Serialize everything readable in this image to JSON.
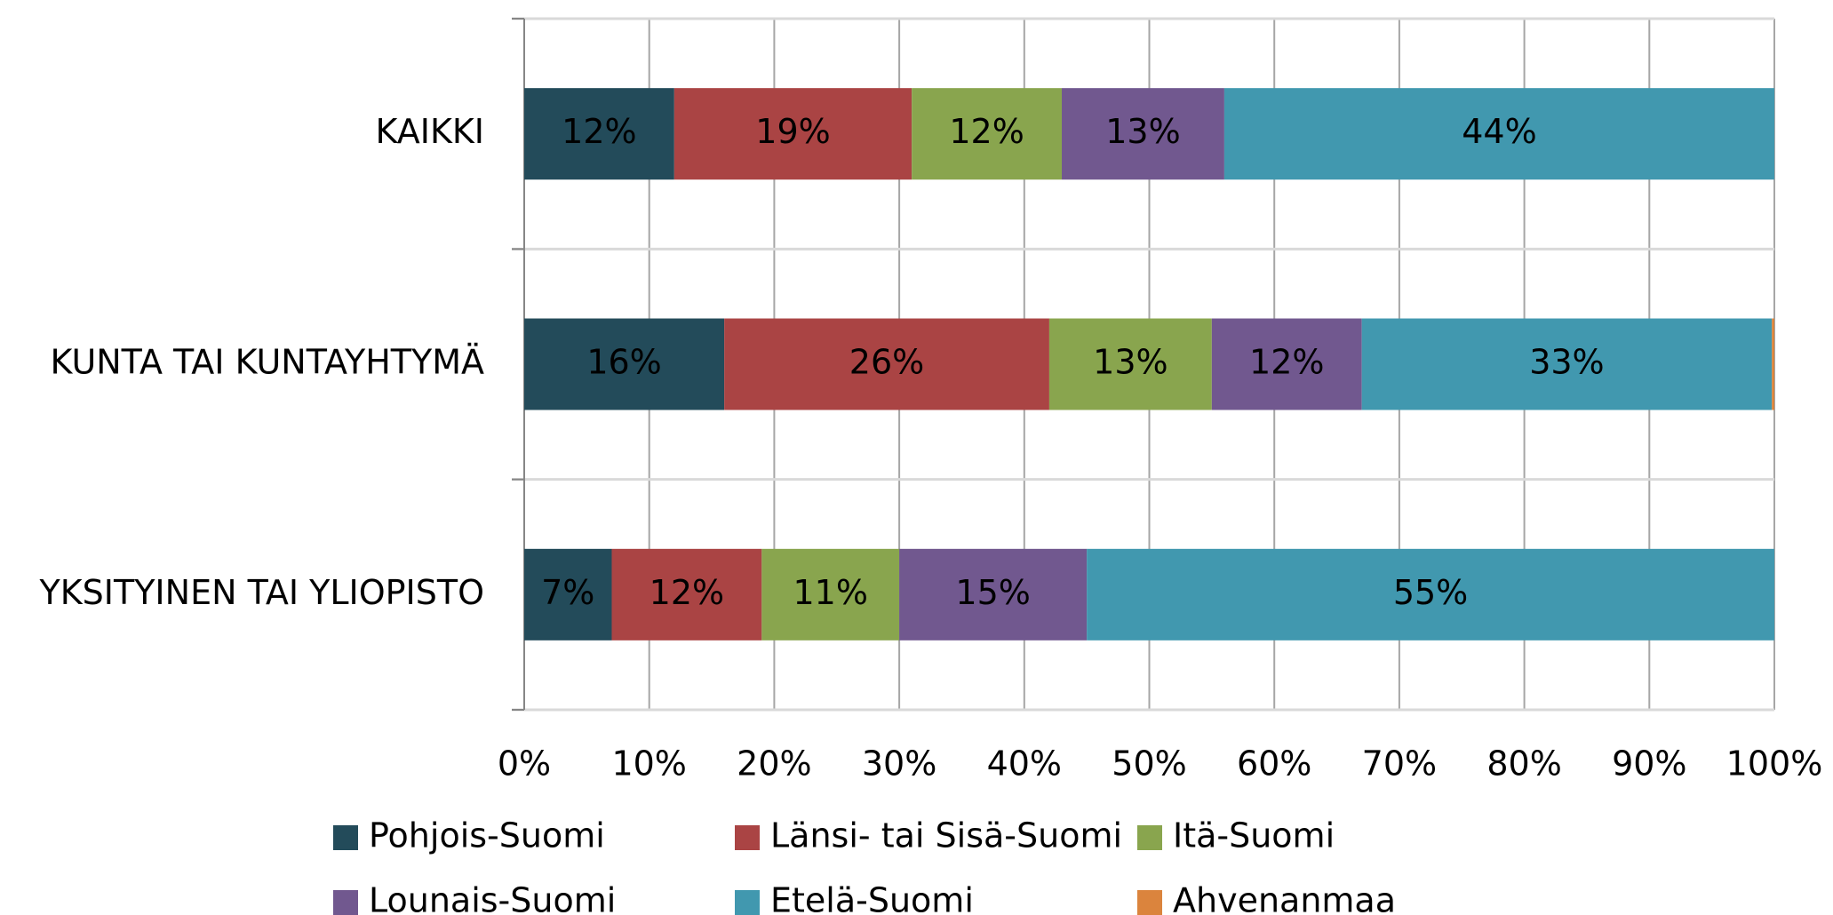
{
  "chart_data": {
    "type": "stacked_bar_horizontal",
    "categories": [
      "KAIKKI",
      "KUNTA TAI KUNTAYHTYMÄ",
      "YKSITYINEN TAI YLIOPISTO"
    ],
    "series": [
      {
        "name": "Pohjois-Suomi",
        "color": "#234b5a",
        "label_color": "#ffffff",
        "values": [
          12,
          16,
          7
        ],
        "value_labels": [
          "12%",
          "16%",
          "7%"
        ]
      },
      {
        "name": "Länsi- tai Sisä-Suomi",
        "color": "#aa4444",
        "label_color": "#ffffff",
        "values": [
          19,
          26,
          12
        ],
        "value_labels": [
          "19%",
          "26%",
          "12%"
        ]
      },
      {
        "name": "Itä-Suomi",
        "color": "#89a54e",
        "label_color": "#000000",
        "values": [
          12,
          13,
          11
        ],
        "value_labels": [
          "12%",
          "13%",
          "11%"
        ]
      },
      {
        "name": "Lounais-Suomi",
        "color": "#71588f",
        "label_color": "#ffffff",
        "values": [
          13,
          12,
          15
        ],
        "value_labels": [
          "13%",
          "12%",
          "15%"
        ]
      },
      {
        "name": "Etelä-Suomi",
        "color": "#4198af",
        "label_color": "#000000",
        "values": [
          44,
          32.8,
          55
        ],
        "value_labels": [
          "44%",
          "33%",
          "55%"
        ]
      },
      {
        "name": "Ahvenanmaa",
        "color": "#db843d",
        "values": [
          0,
          0.2,
          0
        ]
      }
    ],
    "xlim": [
      0,
      100
    ],
    "xticks": [
      {
        "value": 0,
        "label": "0%"
      },
      {
        "value": 10,
        "label": "10%"
      },
      {
        "value": 20,
        "label": "20%"
      },
      {
        "value": 30,
        "label": "30%"
      },
      {
        "value": 40,
        "label": "40%"
      },
      {
        "value": 50,
        "label": "50%"
      },
      {
        "value": 60,
        "label": "60%"
      },
      {
        "value": 70,
        "label": "70%"
      },
      {
        "value": 80,
        "label": "80%"
      },
      {
        "value": 90,
        "label": "90%"
      },
      {
        "value": 100,
        "label": "100%"
      }
    ],
    "grid": true,
    "legend": "bottom"
  }
}
